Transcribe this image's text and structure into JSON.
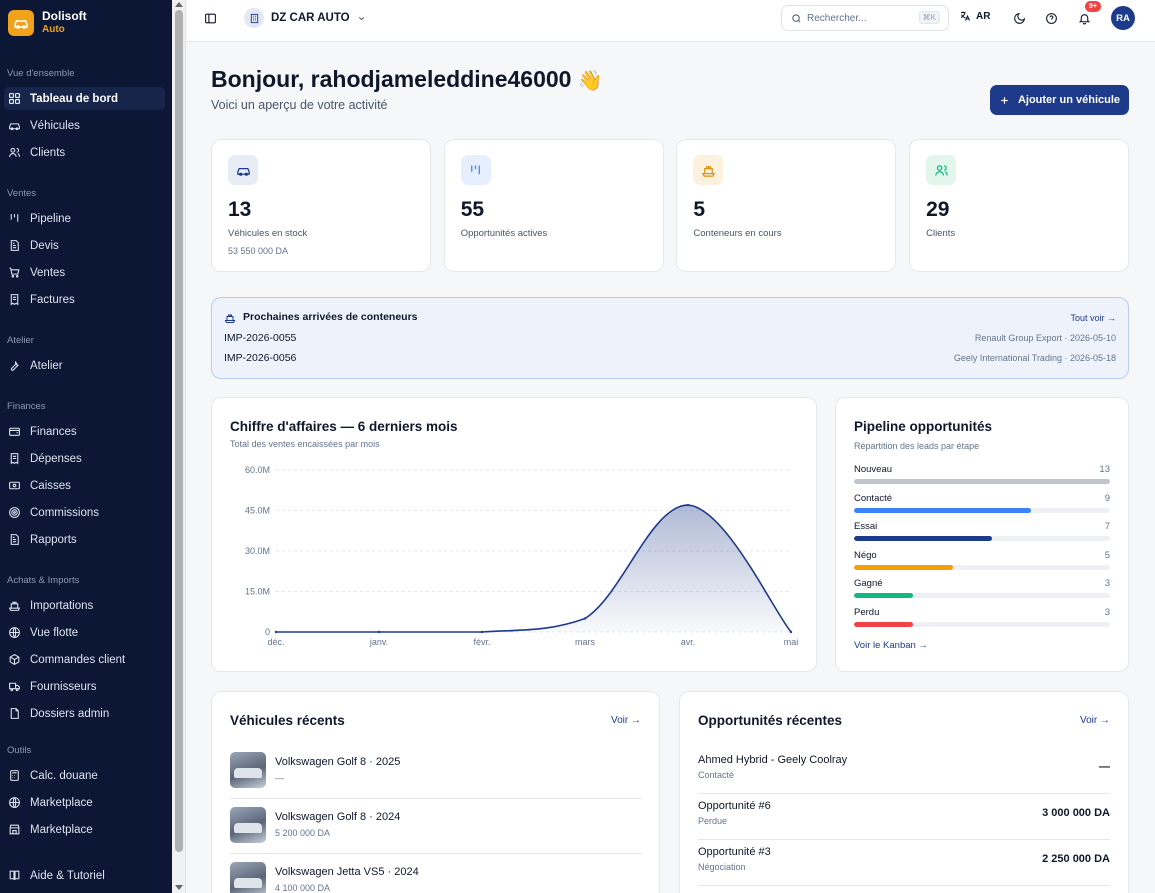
{
  "brand": {
    "name": "Dolisoft",
    "sub": "Auto"
  },
  "sidebar": {
    "sections": [
      {
        "title": "Vue d'ensemble",
        "items": [
          {
            "label": "Tableau de bord",
            "icon": "dashboard-icon",
            "active": true
          },
          {
            "label": "Véhicules",
            "icon": "car-icon"
          },
          {
            "label": "Clients",
            "icon": "users-icon"
          }
        ]
      },
      {
        "title": "Ventes",
        "items": [
          {
            "label": "Pipeline",
            "icon": "pipeline-icon"
          },
          {
            "label": "Devis",
            "icon": "file-text-icon"
          },
          {
            "label": "Ventes",
            "icon": "cart-icon"
          },
          {
            "label": "Factures",
            "icon": "receipt-icon"
          }
        ]
      },
      {
        "title": "Atelier",
        "items": [
          {
            "label": "Atelier",
            "icon": "wrench-icon"
          }
        ]
      },
      {
        "title": "Finances",
        "items": [
          {
            "label": "Finances",
            "icon": "wallet-icon"
          },
          {
            "label": "Dépenses",
            "icon": "receipt-icon"
          },
          {
            "label": "Caisses",
            "icon": "cash-icon"
          },
          {
            "label": "Commissions",
            "icon": "target-icon"
          },
          {
            "label": "Rapports",
            "icon": "file-text-icon"
          }
        ]
      },
      {
        "title": "Achats & Imports",
        "items": [
          {
            "label": "Importations",
            "icon": "ship-icon"
          },
          {
            "label": "Vue flotte",
            "icon": "globe-icon"
          },
          {
            "label": "Commandes client",
            "icon": "package-icon"
          },
          {
            "label": "Fournisseurs",
            "icon": "truck-icon"
          },
          {
            "label": "Dossiers admin",
            "icon": "folder-icon"
          }
        ]
      },
      {
        "title": "Outils",
        "items": [
          {
            "label": "Calc. douane",
            "icon": "calculator-icon"
          },
          {
            "label": "Marketplace",
            "icon": "globe-icon"
          },
          {
            "label": "Marketplace",
            "icon": "store-icon"
          }
        ]
      }
    ],
    "footer_item": {
      "label": "Aide & Tutoriel",
      "icon": "book-icon"
    }
  },
  "topbar": {
    "company": "DZ CAR AUTO",
    "search_placeholder": "Rechercher...",
    "search_shortcut": "⌘K",
    "language": "AR",
    "notification_badge": "9+",
    "user_initials": "RA"
  },
  "header": {
    "greeting": "Bonjour, rahodjameleddine46000",
    "wave": "👋",
    "subtitle": "Voici un aperçu de votre activité",
    "add_button": "Ajouter un véhicule"
  },
  "stats": [
    {
      "value": "13",
      "label": "Véhicules en stock",
      "sub": "53 550 000 DA",
      "icon": "car-icon",
      "color": "#1e3a8a",
      "bg": "#e7ecf5"
    },
    {
      "value": "55",
      "label": "Opportunités actives",
      "sub": "",
      "icon": "pipeline-icon",
      "color": "#3b82f6",
      "bg": "#e6effd"
    },
    {
      "value": "5",
      "label": "Conteneurs en cours",
      "sub": "",
      "icon": "ship-icon",
      "color": "#d99312",
      "bg": "#fbf1dc"
    },
    {
      "value": "29",
      "label": "Clients",
      "sub": "",
      "icon": "users-icon",
      "color": "#10b981",
      "bg": "#e2f6ee"
    }
  ],
  "arrivals": {
    "title": "Prochaines arrivées de conteneurs",
    "link": "Tout voir →",
    "items": [
      {
        "ref": "IMP-2026-0055",
        "supplier": "Renault Group Export · 2026-05-10"
      },
      {
        "ref": "IMP-2026-0056",
        "supplier": "Geely International Trading · 2026-05-18"
      }
    ]
  },
  "revenue": {
    "title": "Chiffre d'affaires — 6 derniers mois",
    "subtitle": "Total des ventes encaissées par mois"
  },
  "chart_data": {
    "type": "area",
    "categories": [
      "déc.",
      "janv.",
      "févr.",
      "mars",
      "avr.",
      "mai"
    ],
    "values": [
      0,
      0,
      0,
      5,
      47,
      0
    ],
    "ylim": [
      0,
      60
    ],
    "yticks": [
      "0",
      "15.0M",
      "30.0M",
      "45.0M",
      "60.0M"
    ],
    "ytick_values": [
      0,
      15,
      30,
      45,
      60
    ],
    "unit": "M",
    "grid": true,
    "color": "#1e3a8a"
  },
  "pipeline": {
    "title": "Pipeline opportunités",
    "subtitle": "Répartition des leads par étape",
    "max": 13,
    "stages": [
      {
        "label": "Nouveau",
        "count": 13,
        "color": "#c2c6cc"
      },
      {
        "label": "Contacté",
        "count": 9,
        "color": "#3b82f6"
      },
      {
        "label": "Essai",
        "count": 7,
        "color": "#1e3a8a"
      },
      {
        "label": "Négo",
        "count": 5,
        "color": "#f59e0b"
      },
      {
        "label": "Gagné",
        "count": 3,
        "color": "#10b981"
      },
      {
        "label": "Perdu",
        "count": 3,
        "color": "#ef4444"
      }
    ],
    "link": "Voir le Kanban →"
  },
  "recent_vehicles": {
    "title": "Véhicules récents",
    "link": "Voir →",
    "items": [
      {
        "name": "Volkswagen Golf 8 · 2025",
        "price": "—"
      },
      {
        "name": "Volkswagen Golf 8 · 2024",
        "price": "5 200 000 DA"
      },
      {
        "name": "Volkswagen Jetta VS5 · 2024",
        "price": "4 100 000 DA"
      }
    ]
  },
  "recent_opportunities": {
    "title": "Opportunités récentes",
    "link": "Voir →",
    "items": [
      {
        "name": "Ahmed Hybrid - Geely Coolray",
        "stage": "Contacté",
        "amount": "—"
      },
      {
        "name": "Opportunité #6",
        "stage": "Perdue",
        "amount": "3 000 000 DA"
      },
      {
        "name": "Opportunité #3",
        "stage": "Négociation",
        "amount": "2 250 000 DA"
      }
    ]
  }
}
